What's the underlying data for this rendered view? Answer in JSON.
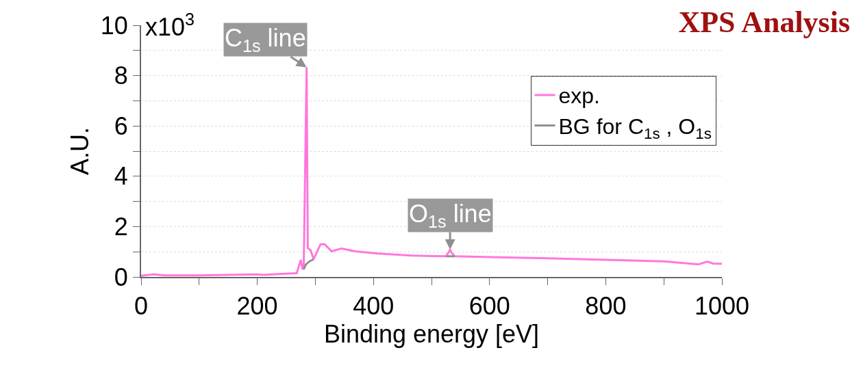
{
  "chart_data": {
    "type": "line",
    "title": "XPS Analysis",
    "xlabel": "Binding energy [eV]",
    "ylabel": "A.U.",
    "xlim": [
      0,
      1000
    ],
    "ylim": [
      0,
      10
    ],
    "xticks": [
      0,
      {
        "value": 100,
        "label": null
      },
      200,
      {
        "value": 300,
        "label": null
      },
      400,
      {
        "value": 500,
        "label": null
      },
      600,
      {
        "value": 700,
        "label": null
      },
      800,
      {
        "value": 900,
        "label": null
      },
      1000
    ],
    "yticks": [
      0,
      {
        "value": 1,
        "label": null
      },
      2,
      {
        "value": 3,
        "label": null
      },
      4,
      {
        "value": 5,
        "label": null
      },
      6,
      {
        "value": 7,
        "label": null
      },
      8,
      {
        "value": 9,
        "label": null
      },
      10
    ],
    "grid": "y",
    "legend": "top right",
    "marker": "none",
    "line_style": "solid",
    "series": [
      {
        "name": "exp.",
        "color": "#ff77dd",
        "x": [
          0,
          22,
          40,
          100,
          199,
          210,
          268,
          275,
          278,
          280,
          285,
          287,
          292,
          297,
          309,
          316,
          328,
          345,
          368,
          407,
          466,
          500,
          525,
          530,
          532,
          535,
          540,
          600,
          700,
          800,
          900,
          960,
          975,
          985,
          1000
        ],
        "values": [
          0.05,
          0.1,
          0.06,
          0.06,
          0.1,
          0.08,
          0.15,
          0.68,
          0.3,
          0.35,
          8.33,
          1.14,
          1.06,
          0.7,
          1.3,
          1.3,
          1.02,
          1.13,
          1.02,
          0.93,
          0.85,
          0.83,
          0.82,
          1.0,
          1.09,
          0.95,
          0.82,
          0.79,
          0.74,
          0.68,
          0.62,
          0.5,
          0.61,
          0.53,
          0.52
        ]
      },
      {
        "name": "BG for C$_{1s}$ , O$_{1s}$",
        "color": "#909090",
        "x": [
          280,
          284,
          290,
          297,
          300,
          525,
          540
        ],
        "values": [
          0.3,
          0.5,
          0.62,
          0.7,
          null,
          0.82,
          0.82
        ]
      }
    ],
    "annotations": [
      "x10$^{3}$",
      {
        "text": "C$_{1s}$ line",
        "x": 285,
        "y": 8.33
      },
      {
        "text": "O$_{1s}$ line",
        "x": 532,
        "y": 1.09
      }
    ]
  }
}
